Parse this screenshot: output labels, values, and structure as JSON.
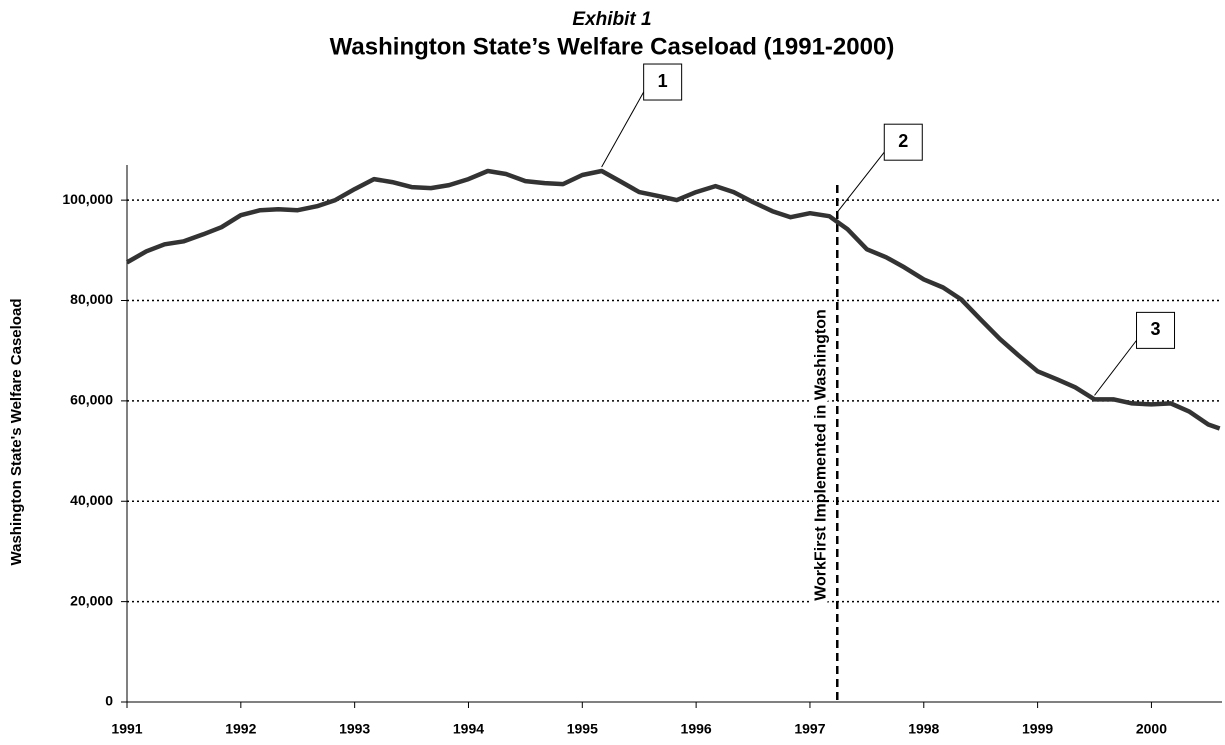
{
  "chart_data": {
    "type": "line",
    "subtitle": "Exhibit 1",
    "title": "Washington State’s Welfare Caseload (1991-2000)",
    "y_label": "Washington State's Welfare Caseload",
    "x": [
      1991.0,
      1991.17,
      1991.33,
      1991.5,
      1991.67,
      1991.83,
      1992.0,
      1992.17,
      1992.33,
      1992.5,
      1992.67,
      1992.83,
      1993.0,
      1993.17,
      1993.33,
      1993.5,
      1993.67,
      1993.83,
      1994.0,
      1994.17,
      1994.33,
      1994.5,
      1994.67,
      1994.83,
      1995.0,
      1995.17,
      1995.33,
      1995.5,
      1995.67,
      1995.83,
      1996.0,
      1996.17,
      1996.33,
      1996.5,
      1996.67,
      1996.83,
      1997.0,
      1997.17,
      1997.33,
      1997.5,
      1997.67,
      1997.83,
      1998.0,
      1998.17,
      1998.33,
      1998.5,
      1998.67,
      1998.83,
      1999.0,
      1999.17,
      1999.33,
      1999.5,
      1999.67,
      1999.83,
      2000.0,
      2000.17,
      2000.33,
      2000.5,
      2000.6
    ],
    "series": [
      {
        "name": "Welfare Caseload",
        "color": "#333333",
        "values": [
          87600,
          89800,
          91200,
          91800,
          93200,
          94600,
          97000,
          98000,
          98200,
          98000,
          98800,
          100000,
          102200,
          104200,
          103600,
          102600,
          102400,
          103000,
          104200,
          105800,
          105200,
          103800,
          103400,
          103200,
          105000,
          105800,
          103800,
          101600,
          100800,
          100000,
          101600,
          102800,
          101600,
          99600,
          97800,
          96600,
          97400,
          96800,
          94200,
          90200,
          88600,
          86600,
          84200,
          82600,
          80200,
          76200,
          72300,
          69100,
          65900,
          64300,
          62700,
          60300,
          60300,
          59500,
          59300,
          59500,
          57900,
          55300,
          54500
        ]
      }
    ],
    "xlim": [
      1991,
      2000.62
    ],
    "ylim": [
      0,
      107000
    ],
    "xticks": [
      1991,
      1992,
      1993,
      1994,
      1995,
      1996,
      1997,
      1998,
      1999,
      2000
    ],
    "yticks": [
      0,
      {
        "value": 20000,
        "label": "20,000"
      },
      {
        "value": 40000,
        "label": "40,000"
      },
      {
        "value": 60000,
        "label": "60,000"
      },
      {
        "value": 80000,
        "label": "80,000"
      },
      {
        "value": 100000,
        "label": "100,000"
      }
    ],
    "grid": true,
    "event": {
      "x": 1997.24,
      "label": "WorkFirst Implemented in Washington"
    },
    "annotations": [
      {
        "text": "1",
        "x": 1995.17
      },
      {
        "text": "2",
        "x": 1997.24
      },
      {
        "text": "3",
        "x": 1999.5
      }
    ]
  }
}
